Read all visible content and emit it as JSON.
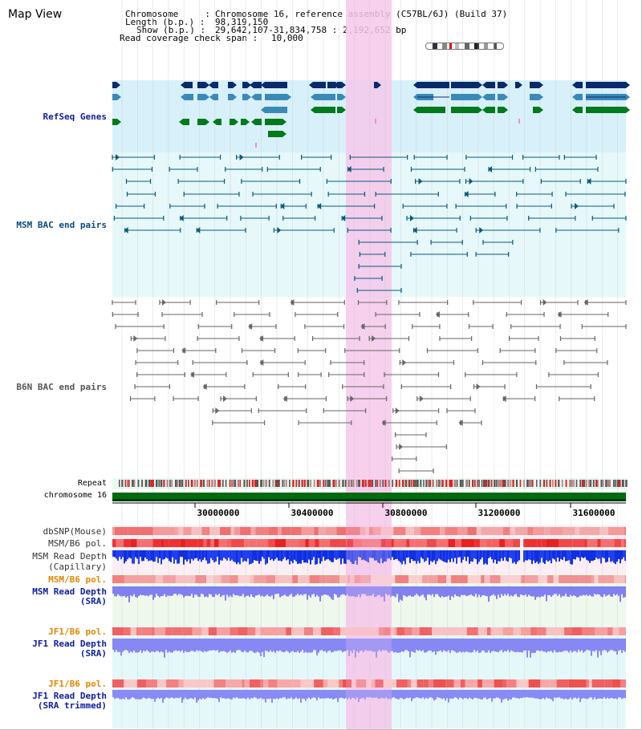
{
  "window": {
    "title": "Map View"
  },
  "header": {
    "chromosome_label": "Chromosome     :",
    "chromosome_value": "Chromosome 16, reference assembly (C57BL/6J) (Build 37)",
    "length_label": "Length (b.p.) :",
    "length_value": "98,319,150",
    "show_label": "Show (b.p.) :",
    "show_value": "29,642,107-31,834,758 : 2,192,652 bp",
    "span_label": "Read coverage check span :",
    "span_value": "10,000"
  },
  "tracks": {
    "refseq": "RefSeq Genes",
    "msm_bac": "MSM BAC end pairs",
    "b6n_bac": "B6N BAC end pairs",
    "repeat": "Repeat",
    "chromosome": "chromosome 16",
    "dbsnp": "dbSNP(Mouse)",
    "msm_b6_pol_1": "MSM/B6 pol.",
    "msm_read_depth_cap_1": "MSM Read Depth",
    "msm_read_depth_cap_2": "(Capillary)",
    "msm_b6_pol_2": "MSM/B6 pol.",
    "msm_read_depth_sra_1": "MSM Read Depth",
    "msm_read_depth_sra_2": "(SRA)",
    "jf1_b6_pol_1": "JF1/B6 pol.",
    "jf1_read_depth_sra_1": "JF1 Read Depth",
    "jf1_read_depth_sra_2": "(SRA)",
    "jf1_b6_pol_2": "JF1/B6 pol.",
    "jf1_read_depth_trim_1": "JF1 Read Depth",
    "jf1_read_depth_trim_2": "(SRA trimmed)"
  },
  "axis": {
    "ticks": [
      "30000000",
      "30400000",
      "30800000",
      "31200000",
      "31600000"
    ]
  },
  "colors": {
    "refseq_dark": "#0a2a6a",
    "refseq_mid": "#3a8ab8",
    "refseq_green": "#007a1a",
    "msm_bac": "#0a5a7a",
    "b6n_bac": "#666666",
    "highlight": "#f4c8ea",
    "label_blue": "#1020a0",
    "label_orange": "#e08800",
    "label_teal": "#0a4a7a",
    "label_gray": "#555555"
  }
}
